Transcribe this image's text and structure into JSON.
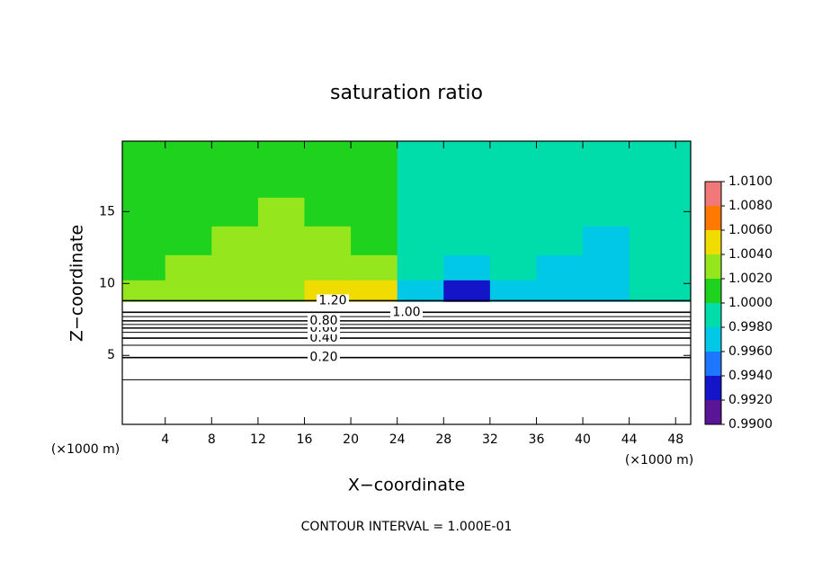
{
  "chart_data": {
    "type": "contour",
    "title": "saturation ratio",
    "x_label": "X−coordinate",
    "y_label": "Z−coordinate",
    "x_unit": "(×1000 m)",
    "note": "CONTOUR INTERVAL = 1.000E-01",
    "xlim": [
      0.3,
      49.3
    ],
    "ylim": [
      0.2,
      19.9
    ],
    "xticks": [
      4,
      8,
      12,
      16,
      20,
      24,
      28,
      32,
      36,
      40,
      44,
      48
    ],
    "yticks": [
      5,
      10,
      15
    ],
    "colorbar": {
      "ticks": [
        {
          "value": 0.99,
          "label": "0.9900"
        },
        {
          "value": 0.992,
          "label": "0.9920"
        },
        {
          "value": 0.994,
          "label": "0.9940"
        },
        {
          "value": 0.996,
          "label": "0.9960"
        },
        {
          "value": 0.998,
          "label": "0.9980"
        },
        {
          "value": 1.0,
          "label": "1.0000"
        },
        {
          "value": 1.002,
          "label": "1.0020"
        },
        {
          "value": 1.004,
          "label": "1.0040"
        },
        {
          "value": 1.006,
          "label": "1.0060"
        },
        {
          "value": 1.008,
          "label": "1.0080"
        },
        {
          "value": 1.01,
          "label": "1.0100"
        }
      ],
      "colors": [
        "#5a1496",
        "#1414c8",
        "#1e78ff",
        "#00c8e6",
        "#00dcaa",
        "#1ed21e",
        "#96e61e",
        "#f0dc00",
        "#ff7800",
        "#f07878"
      ]
    },
    "field": {
      "x": [
        2,
        6,
        10,
        14,
        18,
        22,
        26,
        30,
        34,
        38,
        42,
        46
      ],
      "z": [
        9.5,
        11,
        13,
        15,
        17,
        19
      ],
      "values": [
        [
          1.002,
          1.003,
          1.003,
          1.002,
          1.004,
          1.004,
          0.997,
          0.993,
          0.996,
          0.997,
          0.997,
          0.998
        ],
        [
          1.001,
          1.002,
          1.002,
          1.002,
          1.003,
          1.002,
          0.999,
          0.997,
          0.998,
          0.997,
          0.996,
          0.998
        ],
        [
          1.001,
          1.001,
          1.002,
          1.002,
          1.002,
          1.001,
          0.999,
          0.998,
          0.998,
          0.998,
          0.997,
          0.998
        ],
        [
          1.001,
          1.001,
          1.001,
          1.002,
          1.001,
          1.001,
          0.999,
          0.999,
          0.998,
          0.999,
          0.998,
          0.999
        ],
        [
          1.001,
          1.001,
          1.001,
          1.001,
          1.001,
          1.001,
          0.999,
          0.999,
          0.999,
          0.999,
          0.999,
          0.999
        ],
        [
          1.001,
          1.001,
          1.001,
          1.001,
          1.001,
          1.001,
          0.999,
          0.999,
          0.999,
          0.999,
          0.999,
          0.999
        ]
      ]
    },
    "contours": [
      {
        "level": 0.1,
        "z": 3.3
      },
      {
        "level": 0.2,
        "label": "0.20",
        "z": 4.85
      },
      {
        "level": 0.3,
        "z": 5.7
      },
      {
        "level": 0.4,
        "label": "0.40",
        "z": 6.2
      },
      {
        "level": 0.5,
        "z": 6.6
      },
      {
        "level": 0.6,
        "label": "0.60",
        "z": 6.9
      },
      {
        "level": 0.7,
        "z": 7.15
      },
      {
        "level": 0.8,
        "label": "0.80",
        "z": 7.4
      },
      {
        "level": 0.9,
        "z": 7.7
      },
      {
        "level": 1.0,
        "label": "1.00",
        "z": 8.0
      },
      {
        "level": 1.2,
        "label": "1.20",
        "z": 8.8
      }
    ]
  }
}
